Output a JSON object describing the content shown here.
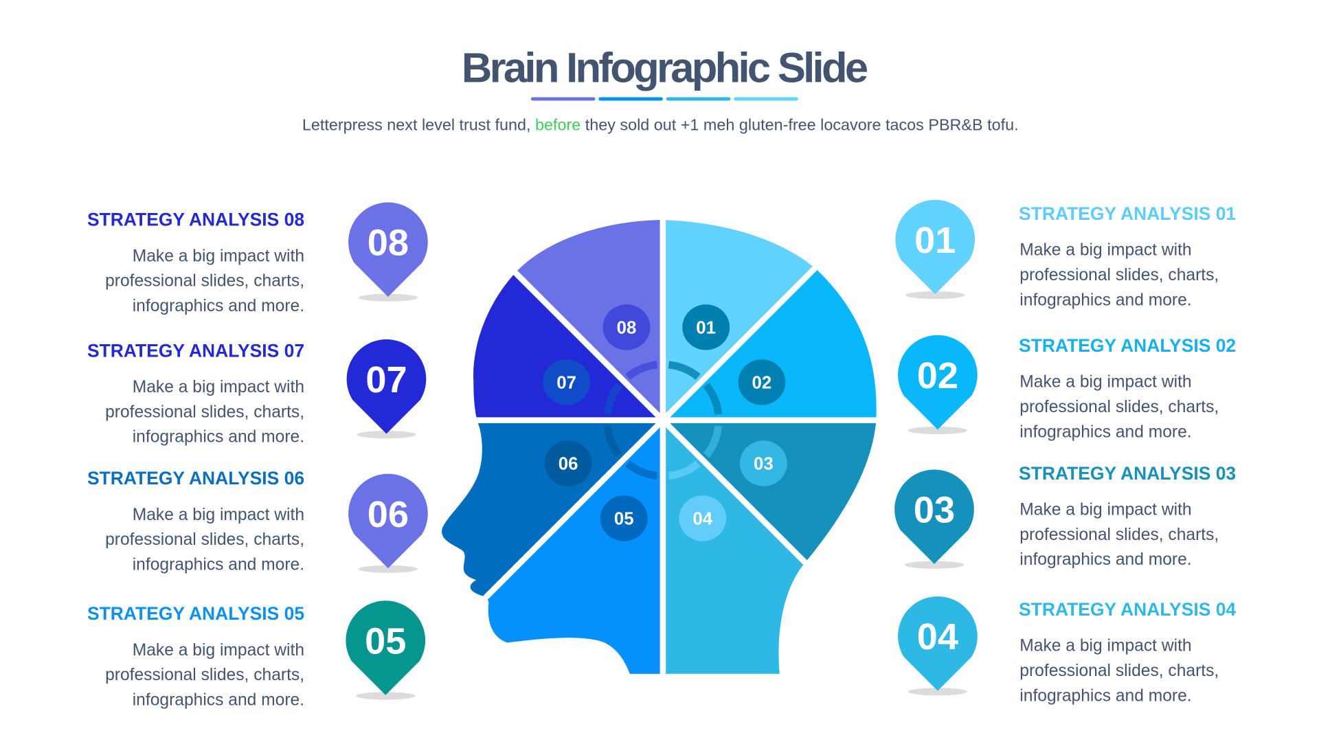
{
  "title": "Brain Infographic Slide",
  "title_color": "#435470",
  "underline_colors": [
    "#6b72e6",
    "#0590fb",
    "#2eb8e5",
    "#62d2fe"
  ],
  "subtitle": {
    "before_text": "Letterpress next level trust fund, ",
    "highlight": "before",
    "after_text": " they sold out +1 meh gluten-free locavore tacos PBR&B tofu.",
    "highlight_color": "#3fcf5e"
  },
  "body_lines": [
    "Make a big impact with",
    "professional slides, charts,",
    "infographics and more."
  ],
  "items": [
    {
      "num": "01",
      "heading": "STRATEGY ANALYSIS 01",
      "side": "right",
      "color": "#62d2fe",
      "heading_color": "#5bcdf8",
      "badge_color": "#0080b0"
    },
    {
      "num": "02",
      "heading": "STRATEGY ANALYSIS 02",
      "side": "right",
      "color": "#0bb7fb",
      "heading_color": "#14b0f0",
      "badge_color": "#0080b0"
    },
    {
      "num": "03",
      "heading": "STRATEGY ANALYSIS 03",
      "side": "right",
      "color": "#1591bb",
      "heading_color": "#1591bb",
      "badge_color": "#35b7e6"
    },
    {
      "num": "04",
      "heading": "STRATEGY ANALYSIS 04",
      "side": "right",
      "color": "#2eb8e5",
      "heading_color": "#2eb8e5",
      "badge_color": "#62cdf8"
    },
    {
      "num": "05",
      "heading": "STRATEGY ANALYSIS 05",
      "side": "left",
      "color": "#0590fb",
      "pin_color": "#06958f",
      "heading_color": "#0b90f5",
      "badge_color": "#0068bd"
    },
    {
      "num": "06",
      "heading": "STRATEGY ANALYSIS 06",
      "side": "left",
      "color": "#006dbe",
      "pin_color": "#6b72e6",
      "heading_color": "#0a6fc0",
      "badge_color": "#005a9e"
    },
    {
      "num": "07",
      "heading": "STRATEGY ANALYSIS 07",
      "side": "left",
      "color": "#2329d6",
      "heading_color": "#2329d6",
      "badge_color": "#104bc8"
    },
    {
      "num": "08",
      "heading": "STRATEGY ANALYSIS 08",
      "side": "left",
      "color": "#6b72e6",
      "heading_color": "#2329d6",
      "badge_color": "#4149da"
    }
  ]
}
